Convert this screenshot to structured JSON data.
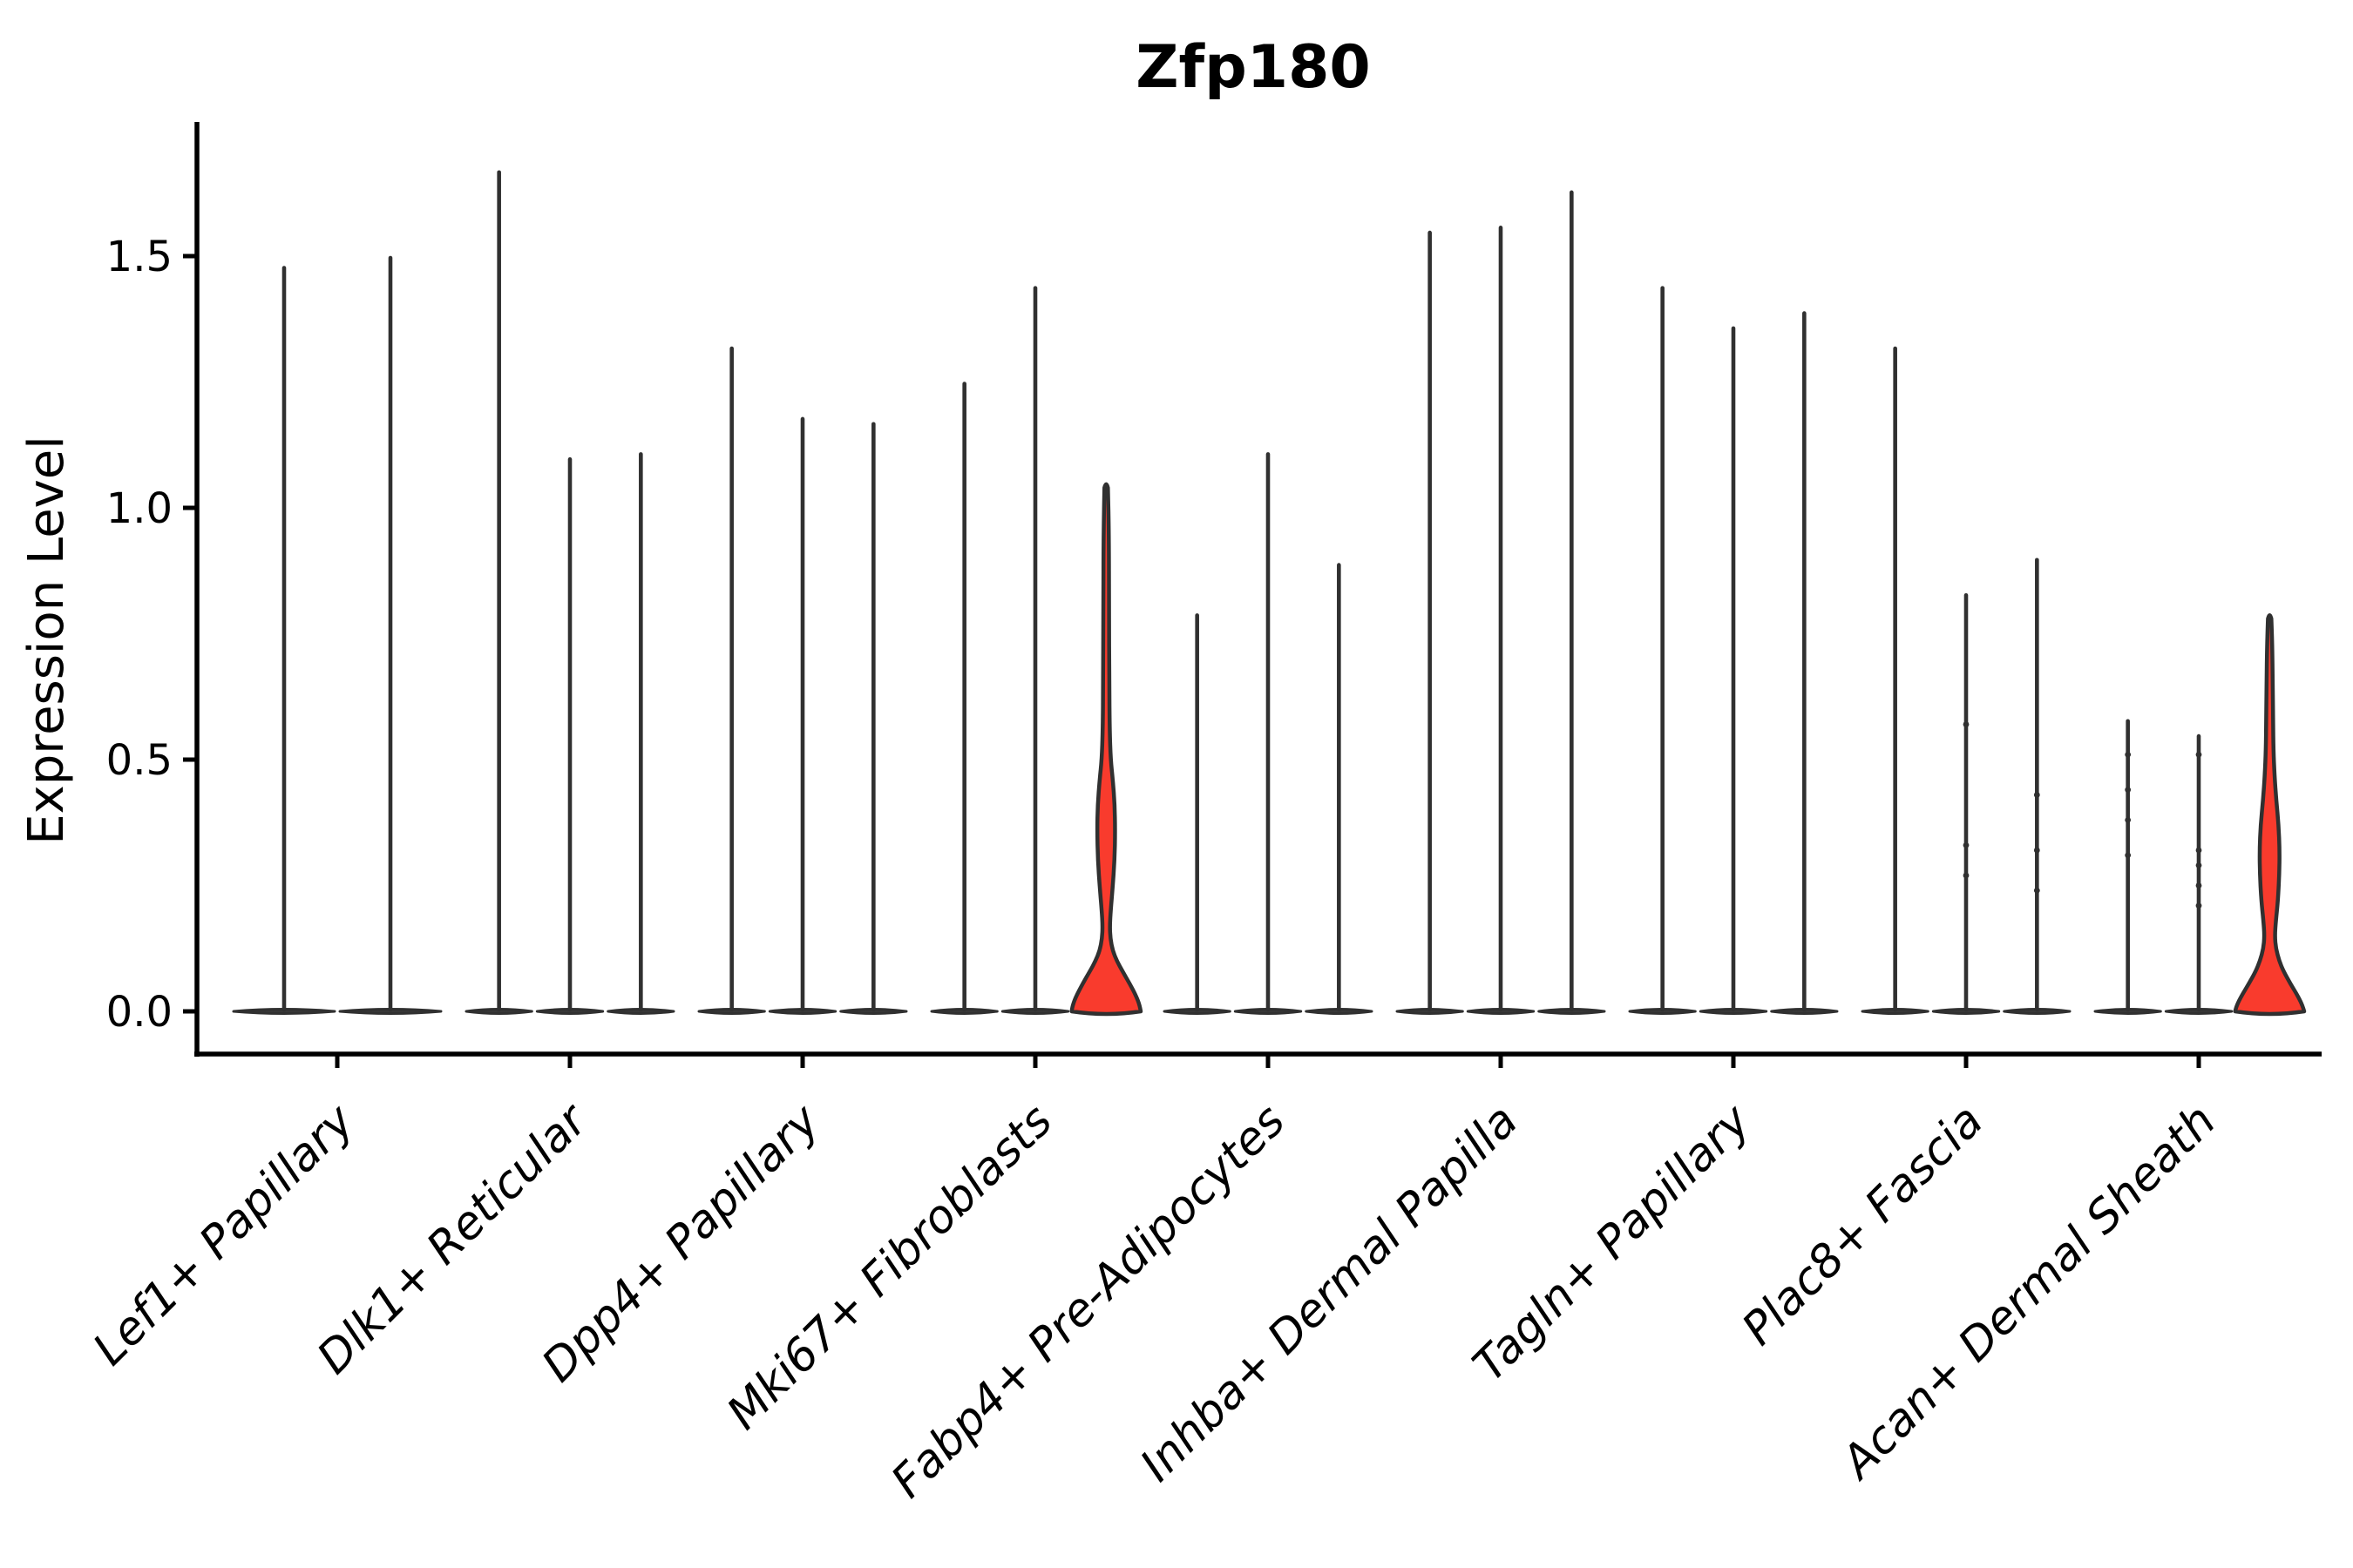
{
  "colors": {
    "background": "#ffffff",
    "spine": "#000000",
    "violin_stroke": "#303030",
    "violin_dark_fill": "#383838",
    "highlight_fill": "#f93b2d",
    "text": "#000000"
  },
  "chart_data": {
    "type": "violin",
    "title": "Zfp180",
    "xlabel": "",
    "ylabel": "Expression Level",
    "ylim": [
      0,
      1.77
    ],
    "yticks": [
      0,
      0.5,
      1.0,
      1.5
    ],
    "ytick_labels": [
      "0.0",
      "0.5",
      "1.0",
      "1.5"
    ],
    "xtick_rotation_deg": 45,
    "grid": false,
    "legend": "none",
    "categories": [
      "Lef1+ Papillary",
      "Dlk1+ Reticular",
      "Dpp4+ Papillary",
      "Mki67+ Fibroblasts",
      "Fabp4+ Pre-Adipocytes",
      "Inhba+ Dermal Papilla",
      "Tagln+ Papillary",
      "Plac8+ Fascia",
      "Acan+ Dermal Sheath"
    ],
    "description": "Violin plot of Zfp180 expression; most violins collapse to a flat base at 0 with a thin spike to the max expressed cell; two violins are highlighted red with visible density bulges.",
    "groups": [
      {
        "category": "Lef1+ Papillary",
        "violins": [
          {
            "max": 1.48,
            "highlight": false
          },
          {
            "max": 1.5,
            "highlight": false
          }
        ]
      },
      {
        "category": "Dlk1+ Reticular",
        "violins": [
          {
            "max": 1.67,
            "highlight": false
          },
          {
            "max": 1.1,
            "highlight": false
          },
          {
            "max": 1.11,
            "highlight": false
          }
        ]
      },
      {
        "category": "Dpp4+ Papillary",
        "violins": [
          {
            "max": 1.32,
            "highlight": false
          },
          {
            "max": 1.18,
            "highlight": false
          },
          {
            "max": 1.17,
            "highlight": false
          }
        ]
      },
      {
        "category": "Mki67+ Fibroblasts",
        "violins": [
          {
            "max": 1.25,
            "highlight": false
          },
          {
            "max": 1.44,
            "highlight": false
          },
          {
            "max": 1.04,
            "highlight": true,
            "profile": [
              [
                0,
                1.0
              ],
              [
                0.012,
                0.97
              ],
              [
                0.03,
                0.87
              ],
              [
                0.055,
                0.68
              ],
              [
                0.08,
                0.47
              ],
              [
                0.1,
                0.31
              ],
              [
                0.12,
                0.19
              ],
              [
                0.145,
                0.12
              ],
              [
                0.17,
                0.105
              ],
              [
                0.2,
                0.13
              ],
              [
                0.245,
                0.185
              ],
              [
                0.3,
                0.24
              ],
              [
                0.36,
                0.26
              ],
              [
                0.41,
                0.245
              ],
              [
                0.46,
                0.19
              ],
              [
                0.5,
                0.13
              ],
              [
                0.56,
                0.1
              ],
              [
                0.65,
                0.09
              ],
              [
                0.8,
                0.082
              ],
              [
                0.95,
                0.078
              ],
              [
                1.04,
                0.05
              ]
            ]
          }
        ]
      },
      {
        "category": "Fabp4+ Pre-Adipocytes",
        "violins": [
          {
            "max": 0.79,
            "highlight": false
          },
          {
            "max": 1.11,
            "highlight": false
          },
          {
            "max": 0.89,
            "highlight": false
          }
        ]
      },
      {
        "category": "Inhba+ Dermal Papilla",
        "violins": [
          {
            "max": 1.55,
            "highlight": false
          },
          {
            "max": 1.56,
            "highlight": false
          },
          {
            "max": 1.63,
            "highlight": false
          }
        ]
      },
      {
        "category": "Tagln+ Papillary",
        "violins": [
          {
            "max": 1.44,
            "highlight": false
          },
          {
            "max": 1.36,
            "highlight": false
          },
          {
            "max": 1.39,
            "highlight": false
          }
        ]
      },
      {
        "category": "Plac8+ Fascia",
        "violins": [
          {
            "max": 1.32,
            "highlight": false
          },
          {
            "max": 0.83,
            "highlight": false,
            "dots": [
              0.57,
              0.33,
              0.27
            ]
          },
          {
            "max": 0.9,
            "highlight": false,
            "dots": [
              0.43,
              0.32,
              0.24
            ]
          }
        ]
      },
      {
        "category": "Acan+ Dermal Sheath",
        "violins": [
          {
            "max": 0.58,
            "highlight": false,
            "dots": [
              0.51,
              0.44,
              0.38,
              0.31
            ]
          },
          {
            "max": 0.55,
            "highlight": false,
            "dots": [
              0.51,
              0.32,
              0.29,
              0.25,
              0.21
            ]
          },
          {
            "max": 0.78,
            "highlight": true,
            "profile": [
              [
                0,
                1.0
              ],
              [
                0.012,
                0.95
              ],
              [
                0.03,
                0.82
              ],
              [
                0.055,
                0.6
              ],
              [
                0.08,
                0.4
              ],
              [
                0.1,
                0.28
              ],
              [
                0.125,
                0.18
              ],
              [
                0.15,
                0.15
              ],
              [
                0.18,
                0.18
              ],
              [
                0.22,
                0.24
              ],
              [
                0.27,
                0.28
              ],
              [
                0.32,
                0.29
              ],
              [
                0.37,
                0.26
              ],
              [
                0.42,
                0.19
              ],
              [
                0.47,
                0.14
              ],
              [
                0.52,
                0.11
              ],
              [
                0.58,
                0.1
              ],
              [
                0.65,
                0.088
              ],
              [
                0.73,
                0.075
              ],
              [
                0.78,
                0.05
              ]
            ]
          }
        ]
      }
    ]
  }
}
